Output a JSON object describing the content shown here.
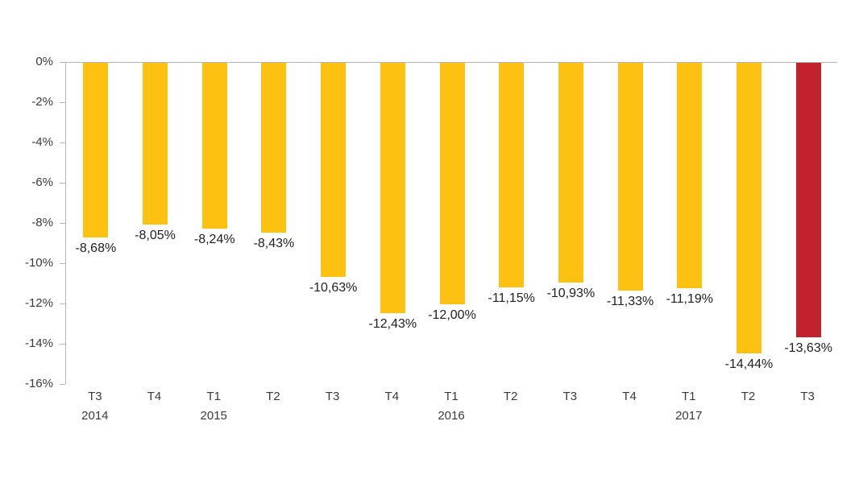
{
  "chart_data": {
    "type": "bar",
    "title": "",
    "orientation": "vertical",
    "categories": [
      "T3",
      "T4",
      "T1",
      "T2",
      "T3",
      "T4",
      "T1",
      "T2",
      "T3",
      "T4",
      "T1",
      "T2",
      "T3"
    ],
    "year_row": [
      "2014",
      "",
      "2015",
      "",
      "",
      "",
      "2016",
      "",
      "",
      "",
      "2017",
      "",
      ""
    ],
    "values": [
      -8.68,
      -8.05,
      -8.24,
      -8.43,
      -10.63,
      -12.43,
      -12.0,
      -11.15,
      -10.93,
      -11.33,
      -11.19,
      -14.44,
      -13.63
    ],
    "data_labels": [
      "-8,68%",
      "-8,05%",
      "-8,24%",
      "-8,43%",
      "-10,63%",
      "-12,43%",
      "-12,00%",
      "-11,15%",
      "-10,93%",
      "-11,33%",
      "-11,19%",
      "-14,44%",
      "-13,63%"
    ],
    "y_ticks": [
      "0%",
      "-2%",
      "-4%",
      "-6%",
      "-8%",
      "-10%",
      "-12%",
      "-14%",
      "-16%"
    ],
    "y_tick_values": [
      0,
      -2,
      -4,
      -6,
      -8,
      -10,
      -12,
      -14,
      -16
    ],
    "ylim": [
      0,
      -16
    ],
    "grid": false,
    "legend": false,
    "highlight_index": 12,
    "colors": {
      "bar": "#FDC211",
      "bar_highlight": "#C2212D",
      "axis_line": "#B5B5B5",
      "tick_text": "#3A3A3A",
      "data_label_text": "#212121",
      "background": "#FFFFFF"
    }
  }
}
